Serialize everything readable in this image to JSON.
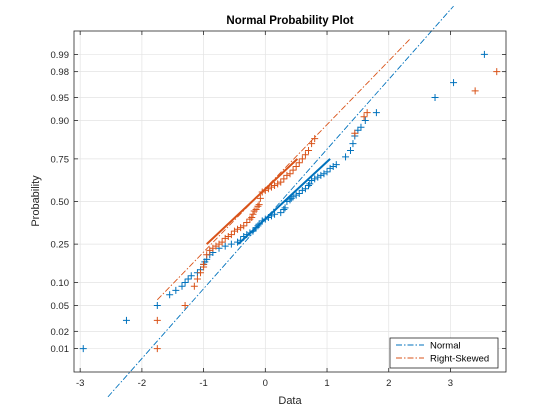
{
  "chart_data": {
    "type": "scatter",
    "title": "Normal Probability Plot",
    "xlabel": "Data",
    "ylabel": "Probability",
    "xlim": [
      -3.1,
      3.9
    ],
    "x_ticks": [
      -3,
      -2,
      -1,
      0,
      1,
      2,
      3
    ],
    "y_ticks": [
      0.01,
      0.02,
      0.05,
      0.1,
      0.25,
      0.5,
      0.75,
      0.9,
      0.95,
      0.98,
      0.99
    ],
    "y_tick_labels": [
      "0.01",
      "0.02",
      "0.05",
      "0.10",
      "0.25",
      "0.50",
      "0.75",
      "0.90",
      "0.95",
      "0.98",
      "0.99"
    ],
    "y_scale": "normal-probability",
    "grid": true,
    "legend_position": "bottom-right",
    "series": [
      {
        "name": "Normal",
        "color": "#0072BD",
        "marker": "+",
        "reference_line": [
          [
            -2.55,
            0.001
          ],
          [
            3.05,
            0.999
          ]
        ],
        "fit_segment": [
          [
            -0.44,
            0.25
          ],
          [
            1.05,
            0.75
          ]
        ],
        "x": [
          -2.95,
          -2.25,
          -1.75,
          -1.55,
          -1.45,
          -1.35,
          -1.3,
          -1.25,
          -1.2,
          -1.1,
          -1.05,
          -1.0,
          -0.98,
          -0.95,
          -0.9,
          -0.85,
          -0.75,
          -0.65,
          -0.55,
          -0.45,
          -0.4,
          -0.35,
          -0.3,
          -0.25,
          -0.2,
          -0.15,
          -0.12,
          -0.1,
          -0.05,
          0.0,
          0.05,
          0.1,
          0.15,
          0.25,
          0.3,
          0.32,
          0.35,
          0.4,
          0.42,
          0.45,
          0.5,
          0.55,
          0.6,
          0.65,
          0.7,
          0.72,
          0.75,
          0.8,
          0.85,
          0.9,
          0.95,
          1.0,
          1.05,
          1.1,
          1.15,
          1.3,
          1.38,
          1.42,
          1.45,
          1.5,
          1.55,
          1.62,
          1.8,
          2.75,
          3.05,
          3.55
        ],
        "y": [
          0.01,
          0.03,
          0.05,
          0.07,
          0.08,
          0.09,
          0.1,
          0.11,
          0.12,
          0.13,
          0.14,
          0.16,
          0.17,
          0.18,
          0.2,
          0.21,
          0.23,
          0.24,
          0.25,
          0.26,
          0.27,
          0.29,
          0.3,
          0.31,
          0.32,
          0.34,
          0.35,
          0.36,
          0.38,
          0.39,
          0.4,
          0.41,
          0.42,
          0.43,
          0.45,
          0.46,
          0.5,
          0.51,
          0.52,
          0.53,
          0.54,
          0.55,
          0.57,
          0.58,
          0.6,
          0.61,
          0.63,
          0.64,
          0.65,
          0.66,
          0.67,
          0.68,
          0.7,
          0.71,
          0.72,
          0.76,
          0.79,
          0.82,
          0.85,
          0.87,
          0.88,
          0.9,
          0.92,
          0.95,
          0.97,
          0.99
        ]
      },
      {
        "name": "Right-Skewed",
        "color": "#D95319",
        "marker": "+",
        "reference_line": [
          [
            -1.75,
            0.06
          ],
          [
            2.35,
            0.995
          ]
        ],
        "fit_segment": [
          [
            -0.95,
            0.25
          ],
          [
            0.52,
            0.75
          ]
        ],
        "x": [
          -1.75,
          -1.75,
          -1.3,
          -1.15,
          -1.1,
          -1.05,
          -1.0,
          -1.0,
          -0.95,
          -0.9,
          -0.85,
          -0.8,
          -0.75,
          -0.7,
          -0.65,
          -0.6,
          -0.55,
          -0.5,
          -0.45,
          -0.4,
          -0.35,
          -0.3,
          -0.25,
          -0.22,
          -0.2,
          -0.18,
          -0.15,
          -0.12,
          -0.1,
          -0.08,
          -0.05,
          0.0,
          0.05,
          0.1,
          0.15,
          0.2,
          0.25,
          0.3,
          0.35,
          0.4,
          0.45,
          0.5,
          0.55,
          0.6,
          0.65,
          0.7,
          0.75,
          0.8,
          1.45,
          1.6,
          1.65,
          3.4,
          3.75
        ],
        "y": [
          0.01,
          0.03,
          0.05,
          0.09,
          0.11,
          0.13,
          0.15,
          0.16,
          0.2,
          0.22,
          0.23,
          0.24,
          0.25,
          0.26,
          0.28,
          0.29,
          0.3,
          0.32,
          0.33,
          0.34,
          0.35,
          0.37,
          0.39,
          0.4,
          0.42,
          0.44,
          0.45,
          0.47,
          0.48,
          0.52,
          0.56,
          0.57,
          0.58,
          0.59,
          0.6,
          0.61,
          0.62,
          0.64,
          0.66,
          0.67,
          0.69,
          0.71,
          0.73,
          0.75,
          0.77,
          0.79,
          0.82,
          0.84,
          0.86,
          0.91,
          0.92,
          0.96,
          0.98
        ]
      }
    ]
  }
}
